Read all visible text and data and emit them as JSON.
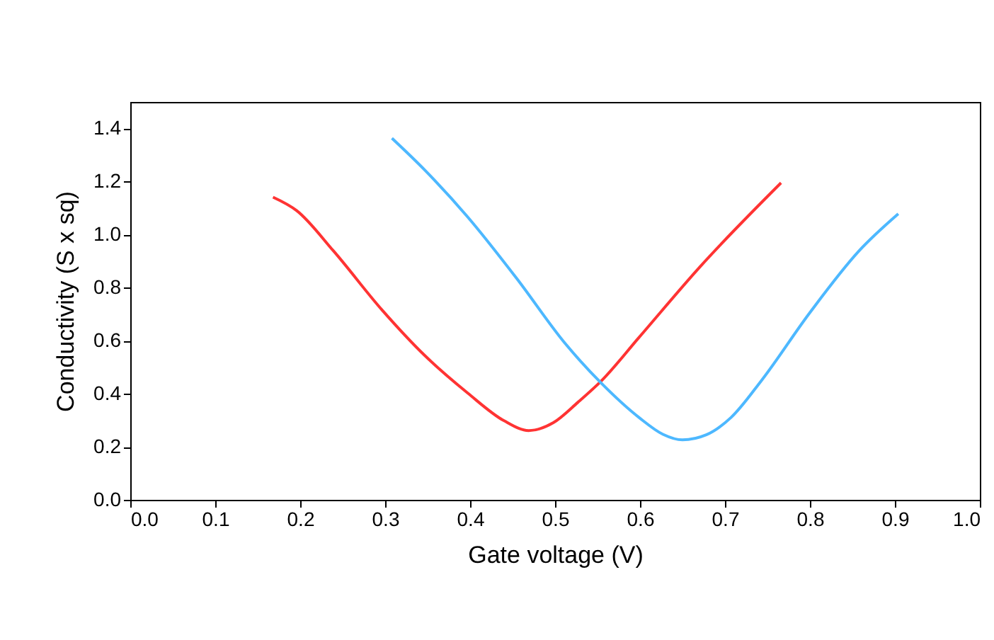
{
  "chart_data": {
    "type": "line",
    "xlabel": "Gate voltage (V)",
    "ylabel": "Conductivity (S x sq)",
    "xlim": [
      0,
      1.0
    ],
    "xticks": [
      {
        "value": 0,
        "label": "0.0"
      },
      0.1,
      0.2,
      0.3,
      0.4,
      0.5,
      0.6,
      0.7,
      0.8,
      0.9,
      {
        "value": 1.0,
        "label": "1.0"
      }
    ],
    "ylim": [
      0,
      1.5
    ],
    "yticks": [
      {
        "value": 0,
        "label": "0.0"
      },
      0.2,
      0.4,
      0.6,
      0.8,
      {
        "value": 1.0,
        "label": "1.0"
      },
      1.2,
      1.4
    ],
    "grid": false,
    "marker": "none",
    "line_style": "solid",
    "series": [
      {
        "color": "#ff3333",
        "x": [
          0.168,
          0.196,
          0.239,
          0.296,
          0.347,
          0.397,
          0.44,
          0.469,
          0.498,
          0.527,
          0.555,
          0.599,
          0.671,
          0.766
        ],
        "values": [
          1.141,
          1.09,
          0.939,
          0.717,
          0.543,
          0.403,
          0.298,
          0.261,
          0.291,
          0.368,
          0.45,
          0.613,
          0.88,
          1.195
        ]
      },
      {
        "color": "#4db8ff",
        "x": [
          0.308,
          0.347,
          0.397,
          0.455,
          0.512,
          0.555,
          0.599,
          0.627,
          0.65,
          0.678,
          0.707,
          0.743,
          0.8,
          0.858,
          0.904
        ],
        "values": [
          1.363,
          1.242,
          1.067,
          0.834,
          0.589,
          0.438,
          0.31,
          0.247,
          0.226,
          0.245,
          0.31,
          0.45,
          0.706,
          0.939,
          1.078
        ]
      }
    ]
  }
}
